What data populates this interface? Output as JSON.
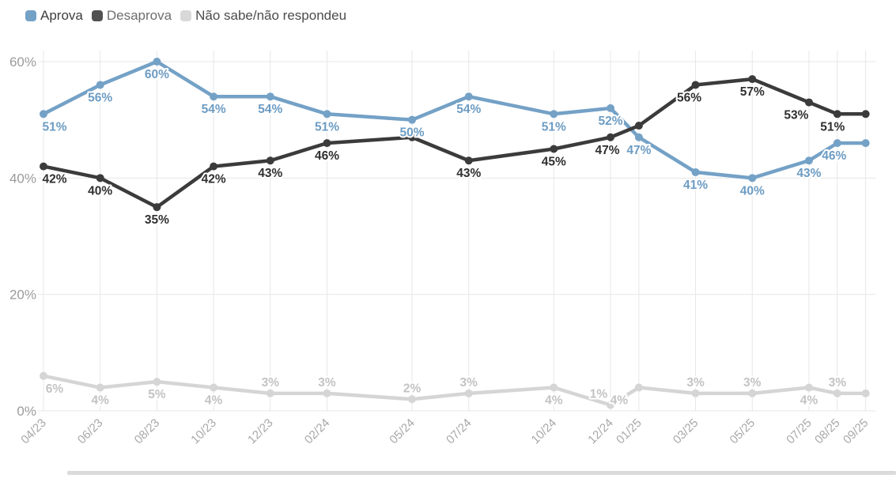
{
  "legend": {
    "items": [
      {
        "label": "Aprova",
        "color": "#74a1c6",
        "text_color": "#3d3d3d"
      },
      {
        "label": "Desaprova",
        "color": "#515151",
        "text_color": "#6e6e6e"
      },
      {
        "label": "Não sabe/não respondeu",
        "color": "#d8d8d8",
        "text_color": "#4c4c4c"
      }
    ]
  },
  "chart_data": {
    "type": "line",
    "title": "",
    "categories": [
      "04/23",
      "06/23",
      "08/23",
      "10/23",
      "12/23",
      "02/24",
      "05/24",
      "07/24",
      "10/24",
      "12/24",
      "01/25",
      "03/25",
      "05/25",
      "07/25",
      "08/25",
      "09/25"
    ],
    "month_offsets": [
      0,
      2,
      4,
      6,
      8,
      10,
      13,
      15,
      18,
      20,
      21,
      23,
      25,
      27,
      28,
      29
    ],
    "y_axis": {
      "ticks": [
        0,
        20,
        40,
        60
      ],
      "tick_labels": [
        "0%",
        "20%",
        "40%",
        "60%"
      ],
      "min": 0,
      "max": 62
    },
    "grid": true,
    "legend_position": "top-left",
    "series": [
      {
        "name": "Aprova",
        "color": "#74a1c6",
        "label_color": "#6d9cc3",
        "values": [
          51,
          56,
          60,
          54,
          54,
          51,
          50,
          54,
          51,
          52,
          47,
          41,
          40,
          43,
          46,
          46
        ],
        "data_labels": [
          "51%",
          "56%",
          "60%",
          "54%",
          "54%",
          "51%",
          "50%",
          "54%",
          "51%",
          "52%",
          "47%",
          "41%",
          "40%",
          "43%",
          "46%",
          null
        ],
        "label_positions": [
          "b",
          "b",
          "b",
          "b",
          "b",
          "b",
          "b",
          "b",
          "b",
          "b",
          "b",
          "b",
          "b",
          "b",
          "b",
          "b"
        ],
        "label_dx": [
          14,
          0,
          0,
          0,
          0,
          0,
          0,
          0,
          0,
          0,
          0,
          0,
          0,
          0,
          -4,
          0
        ]
      },
      {
        "name": "Desaprova",
        "color": "#3b3b3b",
        "label_color": "#303030",
        "values": [
          42,
          40,
          35,
          42,
          43,
          46,
          47,
          43,
          45,
          47,
          49,
          56,
          57,
          53,
          51,
          51
        ],
        "data_labels": [
          "42%",
          "40%",
          "35%",
          "42%",
          "43%",
          "46%",
          null,
          "43%",
          "45%",
          "47%",
          null,
          "56%",
          "57%",
          "53%",
          "51%",
          null
        ],
        "label_positions": [
          "b",
          "b",
          "b",
          "b",
          "b",
          "b",
          "b",
          "b",
          "b",
          "b",
          "b",
          "b",
          "b",
          "b",
          "b",
          "b"
        ],
        "label_dx": [
          14,
          0,
          0,
          0,
          0,
          0,
          0,
          0,
          0,
          -4,
          0,
          -8,
          0,
          -16,
          -6,
          0
        ]
      },
      {
        "name": "Não sabe/não respondeu",
        "color": "#d5d5d5",
        "label_color": "#c3c3c3",
        "values": [
          6,
          4,
          5,
          4,
          3,
          3,
          2,
          3,
          4,
          1,
          4,
          3,
          3,
          4,
          3,
          3
        ],
        "data_labels": [
          "6%",
          "4%",
          "5%",
          "4%",
          "3%",
          "3%",
          "2%",
          "3%",
          "4%",
          "1%",
          "4%",
          "3%",
          "3%",
          "4%",
          "3%",
          null
        ],
        "label_positions": [
          "b",
          "b",
          "b",
          "b",
          "a",
          "a",
          "a",
          "a",
          "b",
          "a",
          "b",
          "a",
          "a",
          "b",
          "a",
          "b"
        ],
        "label_dx": [
          14,
          0,
          0,
          0,
          0,
          0,
          0,
          0,
          0,
          -15,
          -25,
          0,
          0,
          0,
          0,
          0
        ]
      }
    ]
  },
  "colors": {
    "grid_line": "#e7e7e7",
    "y_tick_label": "#9b9b9b",
    "x_tick_label": "#a8a8a8",
    "background": "#ffffff",
    "bottom_divider": "#dbdbdb"
  }
}
